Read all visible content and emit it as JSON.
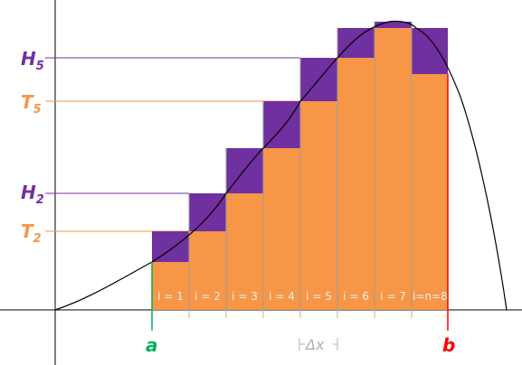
{
  "labels": {
    "H5": {
      "main": "H",
      "sub": "5"
    },
    "T5": {
      "main": "T",
      "sub": "5"
    },
    "H2": {
      "main": "H",
      "sub": "2"
    },
    "T2": {
      "main": "T",
      "sub": "2"
    },
    "a": "a",
    "b": "b",
    "delta_x": "Δx"
  },
  "index_labels": [
    "i = 1",
    "i = 2",
    "i = 3",
    "i = 4",
    "i = 5",
    "i = 6",
    "i = 7",
    "i=n=8"
  ],
  "colors": {
    "upper_sum": "#7030a0",
    "lower_sum": "#f79646",
    "a_marker": "#00b050",
    "b_marker": "#ff0000",
    "curve": "#000000",
    "axis": "#000000"
  }
}
